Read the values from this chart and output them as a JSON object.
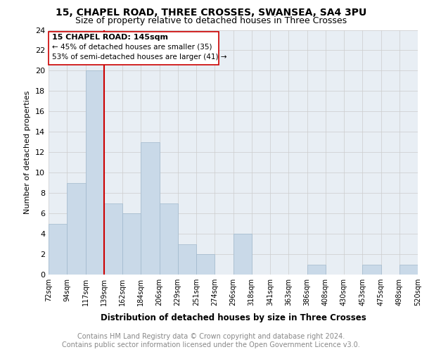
{
  "title1": "15, CHAPEL ROAD, THREE CROSSES, SWANSEA, SA4 3PU",
  "title2": "Size of property relative to detached houses in Three Crosses",
  "xlabel": "Distribution of detached houses by size in Three Crosses",
  "ylabel": "Number of detached properties",
  "footer1": "Contains HM Land Registry data © Crown copyright and database right 2024.",
  "footer2": "Contains public sector information licensed under the Open Government Licence v3.0.",
  "annotation_line1": "15 CHAPEL ROAD: 145sqm",
  "annotation_line2": "← 45% of detached houses are smaller (35)",
  "annotation_line3": "53% of semi-detached houses are larger (41) →",
  "bar_values": [
    5,
    9,
    20,
    7,
    6,
    13,
    7,
    3,
    2,
    0,
    4,
    0,
    0,
    0,
    1,
    0,
    0,
    1,
    0,
    1
  ],
  "bin_labels": [
    "72sqm",
    "94sqm",
    "117sqm",
    "139sqm",
    "162sqm",
    "184sqm",
    "206sqm",
    "229sqm",
    "251sqm",
    "274sqm",
    "296sqm",
    "318sqm",
    "341sqm",
    "363sqm",
    "386sqm",
    "408sqm",
    "430sqm",
    "453sqm",
    "475sqm",
    "498sqm",
    "520sqm"
  ],
  "bar_color": "#c9d9e8",
  "bar_edge_color": "#a0b8cc",
  "vline_color": "#cc0000",
  "box_color": "#cc0000",
  "ylim": [
    0,
    24
  ],
  "yticks": [
    0,
    2,
    4,
    6,
    8,
    10,
    12,
    14,
    16,
    18,
    20,
    22,
    24
  ],
  "grid_color": "#cccccc",
  "bg_color": "#e8eef4",
  "title1_fontsize": 10,
  "title2_fontsize": 9,
  "footer_color": "#888888",
  "footer_fontsize": 7
}
